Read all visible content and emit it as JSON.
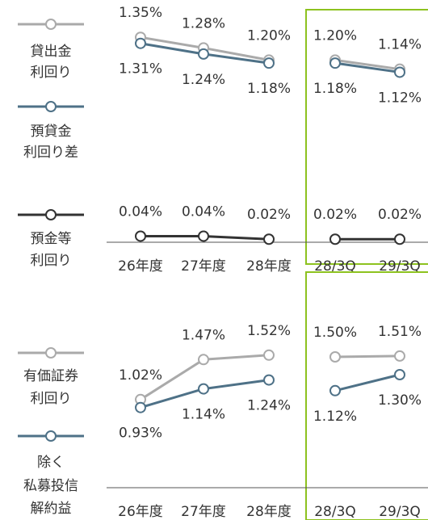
{
  "chart_data": [
    {
      "type": "line",
      "categories": [
        "26年度",
        "27年度",
        "28年度",
        "28/3Q",
        "29/3Q"
      ],
      "ylim": [
        0,
        1.5
      ],
      "highlight_from": 3,
      "highlight_color": "#8dc21f",
      "series": [
        {
          "name": [
            "貸出金",
            "利回り"
          ],
          "color": "#aaaaaa",
          "label_side": "above",
          "values": [
            1.35,
            1.28,
            1.2,
            1.2,
            1.14
          ],
          "value_labels": [
            "1.35%",
            "1.28%",
            "1.20%",
            "1.20%",
            "1.14%"
          ]
        },
        {
          "name": [
            "預貸金",
            "利回り差"
          ],
          "color": "#4e7187",
          "label_side": "below",
          "values": [
            1.31,
            1.24,
            1.18,
            1.18,
            1.12
          ],
          "value_labels": [
            "1.31%",
            "1.24%",
            "1.18%",
            "1.18%",
            "1.12%"
          ]
        },
        {
          "name": [
            "預金等",
            "利回り"
          ],
          "color": "#333333",
          "label_side": "above",
          "values": [
            0.04,
            0.04,
            0.02,
            0.02,
            0.02
          ],
          "value_labels": [
            "0.04%",
            "0.04%",
            "0.02%",
            "0.02%",
            "0.02%"
          ]
        }
      ]
    },
    {
      "type": "line",
      "categories": [
        "26年度",
        "27年度",
        "28年度",
        "28/3Q",
        "29/3Q"
      ],
      "ylim": [
        0,
        2.0
      ],
      "highlight_from": 3,
      "highlight_color": "#8dc21f",
      "series": [
        {
          "name": [
            "有価証券",
            "利回り"
          ],
          "color": "#aaaaaa",
          "label_side": "above",
          "values": [
            1.02,
            1.47,
            1.52,
            1.5,
            1.51
          ],
          "value_labels": [
            "1.02%",
            "1.47%",
            "1.52%",
            "1.50%",
            "1.51%"
          ]
        },
        {
          "name": [
            "除く",
            "私募投信",
            "解約益"
          ],
          "color": "#4e7187",
          "label_side": "below",
          "values": [
            0.93,
            1.14,
            1.24,
            1.12,
            1.3
          ],
          "value_labels": [
            "0.93%",
            "1.14%",
            "1.24%",
            "1.12%",
            "1.30%"
          ]
        }
      ]
    }
  ]
}
